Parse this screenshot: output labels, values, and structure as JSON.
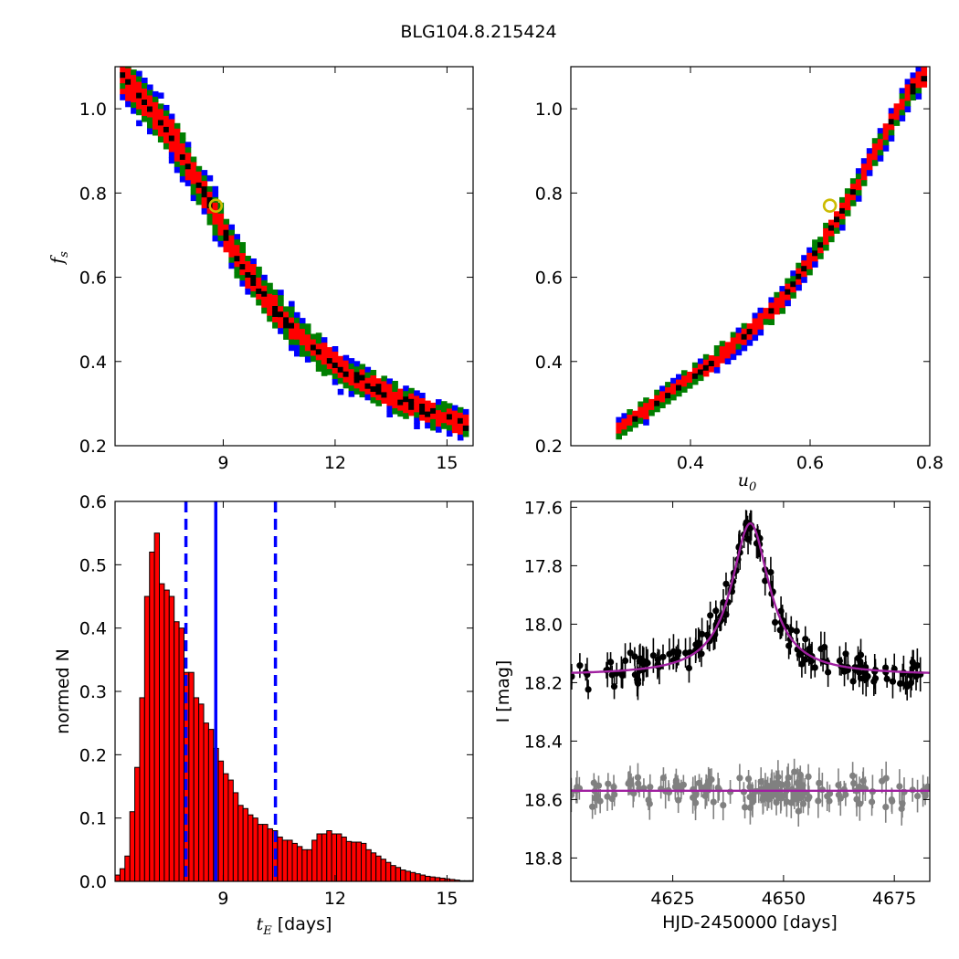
{
  "title": "BLG104.8.215424",
  "chart_data": [
    {
      "type": "heatmap",
      "panel": "top-left",
      "xlabel": "",
      "ylabel": "f_s",
      "ylabel_main": "f",
      "ylabel_sub": "s",
      "xlim": [
        6.1,
        15.7
      ],
      "ylim": [
        0.2,
        1.1
      ],
      "xticks": [
        9,
        12,
        15
      ],
      "yticks": [
        0.2,
        0.4,
        0.6,
        0.8,
        1.0
      ],
      "xtick_labels": [
        "9",
        "12",
        "15"
      ],
      "ytick_labels": [
        "0.2",
        "0.4",
        "0.6",
        "0.8",
        "1.0"
      ],
      "levels_colors": [
        "#0000ff",
        "#007f00",
        "#ff0000",
        "#000000"
      ],
      "best_fit": {
        "x": 8.8,
        "y": 0.77
      },
      "ridge": [
        [
          6.3,
          1.08
        ],
        [
          7.5,
          0.95
        ],
        [
          8.5,
          0.8
        ],
        [
          9.3,
          0.66
        ],
        [
          10.3,
          0.53
        ],
        [
          11.3,
          0.44
        ],
        [
          12.3,
          0.37
        ],
        [
          13.4,
          0.32
        ],
        [
          14.5,
          0.28
        ],
        [
          15.5,
          0.25
        ]
      ],
      "marker_color": "#ccbb00"
    },
    {
      "type": "heatmap",
      "panel": "top-right",
      "xlabel": "u_0",
      "xlabel_main": "u",
      "xlabel_sub": "0",
      "ylabel": "",
      "xlim": [
        0.2,
        0.8
      ],
      "ylim": [
        0.2,
        1.1
      ],
      "xticks": [
        0.4,
        0.6,
        0.8
      ],
      "yticks": [
        0.2,
        0.4,
        0.6,
        0.8,
        1.0
      ],
      "xtick_labels": [
        "0.4",
        "0.6",
        "0.8"
      ],
      "ytick_labels": [
        "0.2",
        "0.4",
        "0.6",
        "0.8",
        "1.0"
      ],
      "levels_colors": [
        "#0000ff",
        "#007f00",
        "#ff0000",
        "#000000"
      ],
      "best_fit": {
        "x": 0.633,
        "y": 0.77
      },
      "ridge": [
        [
          0.28,
          0.24
        ],
        [
          0.35,
          0.31
        ],
        [
          0.42,
          0.38
        ],
        [
          0.49,
          0.46
        ],
        [
          0.55,
          0.54
        ],
        [
          0.61,
          0.66
        ],
        [
          0.66,
          0.77
        ],
        [
          0.71,
          0.9
        ],
        [
          0.76,
          1.03
        ],
        [
          0.79,
          1.08
        ]
      ],
      "marker_color": "#ccbb00"
    },
    {
      "type": "bar",
      "panel": "bottom-left",
      "xlabel": "t_E [days]",
      "xlabel_main": "t",
      "xlabel_sub": "E",
      "xlabel_rest": " [days]",
      "ylabel": "normed N",
      "xlim": [
        6.1,
        15.7
      ],
      "ylim": [
        0.0,
        0.6
      ],
      "xticks": [
        9,
        12,
        15
      ],
      "yticks": [
        0.0,
        0.1,
        0.2,
        0.3,
        0.4,
        0.5,
        0.6
      ],
      "xtick_labels": [
        "9",
        "12",
        "15"
      ],
      "ytick_labels": [
        "0.0",
        "0.1",
        "0.2",
        "0.3",
        "0.4",
        "0.5",
        "0.6"
      ],
      "bin_start": 6.1,
      "bin_width": 0.132,
      "values": [
        0.01,
        0.02,
        0.04,
        0.11,
        0.18,
        0.29,
        0.45,
        0.52,
        0.55,
        0.47,
        0.46,
        0.45,
        0.41,
        0.4,
        0.33,
        0.33,
        0.29,
        0.28,
        0.25,
        0.24,
        0.21,
        0.19,
        0.17,
        0.16,
        0.14,
        0.12,
        0.115,
        0.105,
        0.1,
        0.09,
        0.09,
        0.083,
        0.08,
        0.07,
        0.065,
        0.065,
        0.06,
        0.055,
        0.05,
        0.05,
        0.065,
        0.075,
        0.075,
        0.08,
        0.075,
        0.075,
        0.07,
        0.063,
        0.062,
        0.062,
        0.06,
        0.05,
        0.045,
        0.04,
        0.035,
        0.03,
        0.025,
        0.022,
        0.018,
        0.016,
        0.014,
        0.012,
        0.01,
        0.008,
        0.007,
        0.006,
        0.005,
        0.004,
        0.003,
        0.002,
        0.001,
        0.001,
        0.001
      ],
      "bar_color": "#ff0000",
      "median": 8.8,
      "interval": [
        8.0,
        10.4
      ],
      "line_color": "#0000ff"
    },
    {
      "type": "scatter",
      "panel": "bottom-right",
      "xlabel": "HJD-2450000 [days]",
      "ylabel": "I [mag]",
      "xlim": [
        4602,
        4683
      ],
      "ylim": [
        18.88,
        17.58
      ],
      "xticks": [
        4625,
        4650,
        4675
      ],
      "yticks": [
        17.6,
        17.8,
        18.0,
        18.2,
        18.4,
        18.6,
        18.8
      ],
      "xtick_labels": [
        "4625",
        "4650",
        "4675"
      ],
      "ytick_labels": [
        "17.6",
        "17.8",
        "18.0",
        "18.2",
        "18.4",
        "18.6",
        "18.8"
      ],
      "model": {
        "baseline": 18.175,
        "peak": 17.655,
        "t0": 4642.5,
        "width": 5.2,
        "color": "#a020a0"
      },
      "residual_baseline": 18.57,
      "series": [
        {
          "color": "#000000",
          "n": 170,
          "scatter": 0.04,
          "err": 0.04,
          "range": [
            4602,
            4683
          ]
        },
        {
          "color": "#808080",
          "n": 170,
          "scatter": 0.04,
          "err": 0.04,
          "range": [
            4602,
            4683
          ]
        }
      ]
    }
  ]
}
